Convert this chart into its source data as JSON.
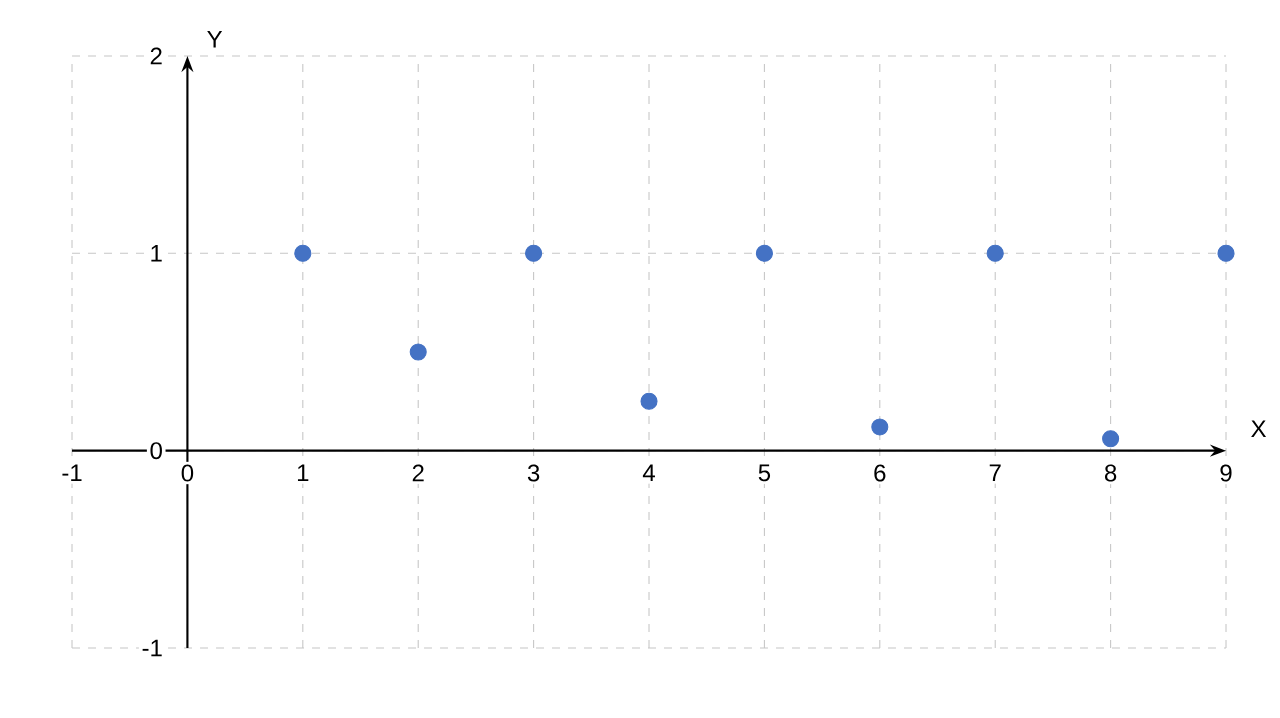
{
  "chart_data": {
    "type": "scatter",
    "xlabel": "X",
    "ylabel": "Y",
    "x": [
      1,
      2,
      3,
      4,
      5,
      6,
      7,
      8,
      9
    ],
    "values": [
      1,
      0.5,
      1,
      0.25,
      1,
      0.12,
      1,
      0.06,
      1
    ],
    "color": "#4472c4",
    "grid": true,
    "xlim": [
      -1,
      9
    ],
    "ylim": [
      -1,
      2
    ],
    "xticks": [
      -1,
      0,
      1,
      2,
      3,
      4,
      5,
      6,
      7,
      8,
      9
    ],
    "yticks": [
      -1,
      0,
      1,
      2
    ]
  }
}
